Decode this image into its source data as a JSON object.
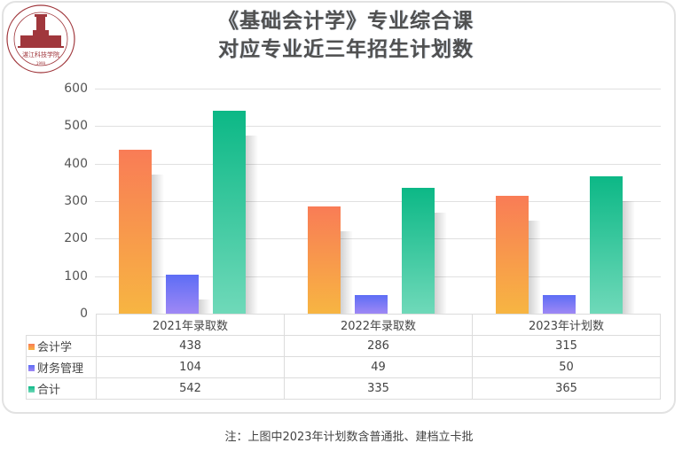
{
  "title": {
    "line1": "《基础会计学》专业综合课",
    "line2": "对应专业近三年招生计划数"
  },
  "logo": {
    "name": "湛江科技学院",
    "ring_text": "ZHANJIANG UNIVERSITY OF SCIENCE AND TECHNOLOGY",
    "year": "1999",
    "color": "#a0373c"
  },
  "yaxis": {
    "ticks": [
      "600",
      "500",
      "400",
      "300",
      "200",
      "100",
      "0"
    ]
  },
  "footnote": "注：上图中2023年计划数含普通批、建档立卡批",
  "chart_data": {
    "type": "bar",
    "title": "《基础会计学》专业综合课 对应专业近三年招生计划数",
    "xlabel": "",
    "ylabel": "",
    "ylim": [
      0,
      600
    ],
    "yticks": [
      0,
      100,
      200,
      300,
      400,
      500,
      600
    ],
    "grid": true,
    "legend_position": "data-table",
    "categories": [
      "2021年录取数",
      "2022年录取数",
      "2023年计划数"
    ],
    "series": [
      {
        "name": "会计学",
        "values": [
          438,
          286,
          315
        ],
        "color_top": "#f97c56",
        "color_bottom": "#f7b542"
      },
      {
        "name": "财务管理",
        "values": [
          104,
          49,
          50
        ],
        "color_top": "#5d6df5",
        "color_bottom": "#9f88f5"
      },
      {
        "name": "合计",
        "values": [
          542,
          335,
          365
        ],
        "color_top": "#0cb886",
        "color_bottom": "#6fd9b9"
      }
    ]
  }
}
